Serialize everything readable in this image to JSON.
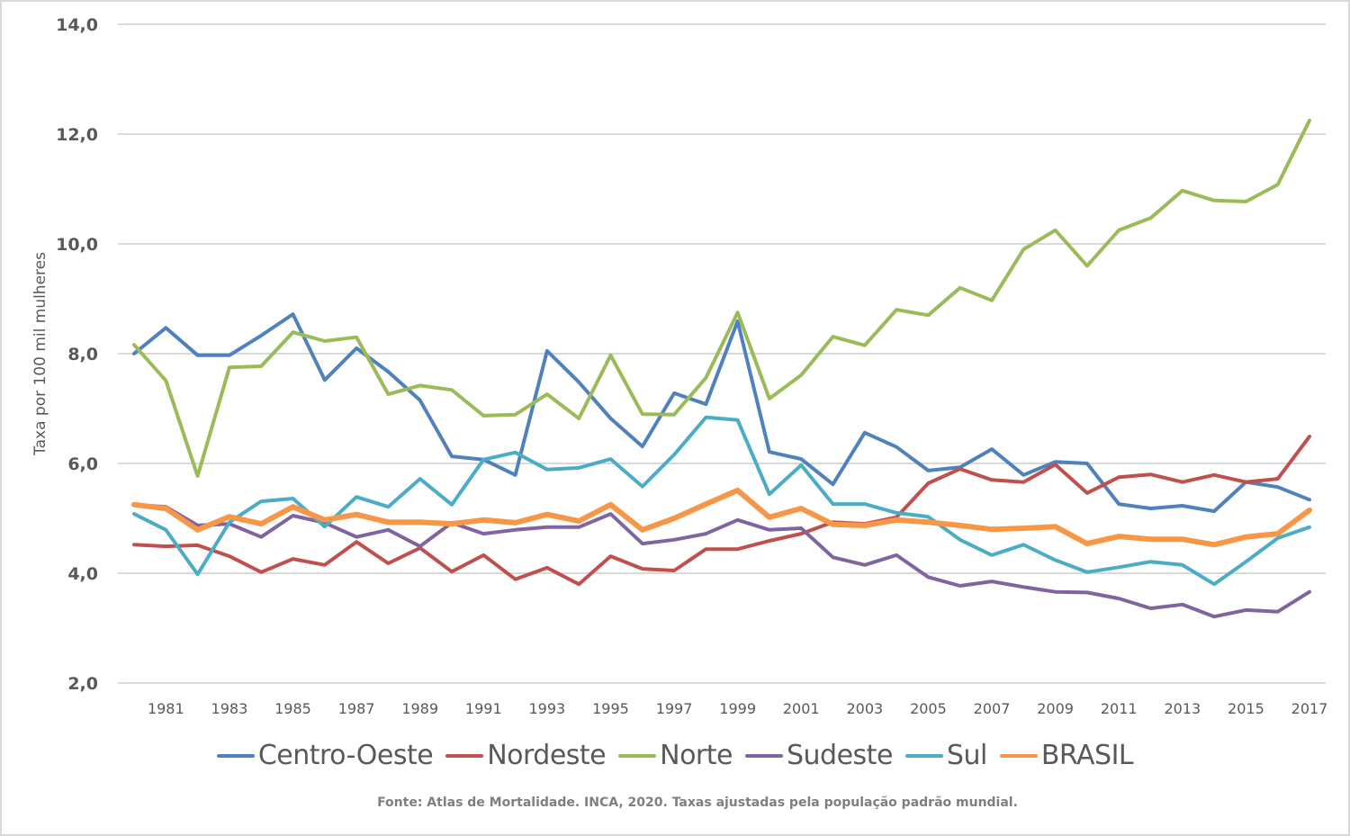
{
  "chart_data": {
    "type": "line",
    "title": "",
    "xlabel": "",
    "ylabel": "Taxa por 100 mil mulheres",
    "ylim": [
      2.0,
      14.0
    ],
    "y_ticks": [
      "2,0",
      "4,0",
      "6,0",
      "8,0",
      "10,0",
      "12,0",
      "14,0"
    ],
    "y_tick_values": [
      2,
      4,
      6,
      8,
      10,
      12,
      14
    ],
    "grid": true,
    "legend_position": "bottom",
    "x": [
      1980,
      1981,
      1982,
      1983,
      1984,
      1985,
      1986,
      1987,
      1988,
      1989,
      1990,
      1991,
      1992,
      1993,
      1994,
      1995,
      1996,
      1997,
      1998,
      1999,
      2000,
      2001,
      2002,
      2003,
      2004,
      2005,
      2006,
      2007,
      2008,
      2009,
      2010,
      2011,
      2012,
      2013,
      2014,
      2015,
      2016,
      2017
    ],
    "x_tick_labels": [
      "1981",
      "1983",
      "1985",
      "1987",
      "1989",
      "1991",
      "1993",
      "1995",
      "1997",
      "1999",
      "2001",
      "2003",
      "2005",
      "2007",
      "2009",
      "2011",
      "2013",
      "2015",
      "2017"
    ],
    "series": [
      {
        "name": "Centro-Oeste",
        "color": "#4f81bd",
        "values": [
          8.0,
          8.47,
          7.97,
          7.97,
          8.33,
          8.72,
          7.52,
          8.1,
          7.67,
          7.15,
          6.13,
          6.07,
          5.79,
          8.05,
          7.48,
          6.82,
          6.31,
          7.28,
          7.08,
          8.59,
          6.21,
          6.08,
          5.62,
          6.56,
          6.3,
          5.87,
          5.93,
          6.26,
          5.79,
          6.03,
          6.0,
          5.26,
          5.18,
          5.23,
          5.13,
          5.66,
          5.57,
          5.34
        ]
      },
      {
        "name": "Nordeste",
        "color": "#c0504d",
        "values": [
          4.52,
          4.49,
          4.51,
          4.31,
          4.02,
          4.26,
          4.15,
          4.57,
          4.18,
          4.46,
          4.03,
          4.33,
          3.89,
          4.1,
          3.8,
          4.31,
          4.08,
          4.05,
          4.44,
          4.44,
          4.59,
          4.72,
          4.93,
          4.9,
          5.02,
          5.64,
          5.9,
          5.7,
          5.66,
          5.98,
          5.46,
          5.75,
          5.8,
          5.66,
          5.79,
          5.66,
          5.72,
          6.49
        ]
      },
      {
        "name": "Norte",
        "color": "#9bbb59",
        "values": [
          8.16,
          7.51,
          5.77,
          7.75,
          7.77,
          8.39,
          8.23,
          8.3,
          7.26,
          7.42,
          7.34,
          6.87,
          6.89,
          7.26,
          6.82,
          7.97,
          6.9,
          6.89,
          7.56,
          8.75,
          7.18,
          7.61,
          8.31,
          8.15,
          8.8,
          8.7,
          9.2,
          8.97,
          9.9,
          10.25,
          9.6,
          10.25,
          10.47,
          10.97,
          10.79,
          10.77,
          11.08,
          12.25
        ]
      },
      {
        "name": "Sudeste",
        "color": "#8064a2",
        "values": [
          5.25,
          5.21,
          4.87,
          4.9,
          4.66,
          5.05,
          4.92,
          4.66,
          4.79,
          4.49,
          4.92,
          4.72,
          4.79,
          4.84,
          4.84,
          5.08,
          4.54,
          4.61,
          4.72,
          4.97,
          4.79,
          4.82,
          4.29,
          4.15,
          4.33,
          3.93,
          3.77,
          3.85,
          3.75,
          3.66,
          3.65,
          3.54,
          3.36,
          3.43,
          3.21,
          3.33,
          3.3,
          3.66
        ]
      },
      {
        "name": "Sul",
        "color": "#4bacc6",
        "values": [
          5.08,
          4.79,
          3.98,
          4.93,
          5.31,
          5.36,
          4.85,
          5.39,
          5.21,
          5.72,
          5.25,
          6.07,
          6.2,
          5.89,
          5.92,
          6.08,
          5.58,
          6.16,
          6.84,
          6.79,
          5.44,
          5.97,
          5.26,
          5.26,
          5.1,
          5.03,
          4.61,
          4.33,
          4.52,
          4.24,
          4.02,
          4.11,
          4.21,
          4.15,
          3.8,
          4.21,
          4.64,
          4.84
        ]
      },
      {
        "name": "BRASIL",
        "color": "#f79646",
        "values": [
          5.25,
          5.18,
          4.79,
          5.03,
          4.9,
          5.21,
          4.97,
          5.07,
          4.93,
          4.93,
          4.9,
          4.97,
          4.92,
          5.07,
          4.95,
          5.25,
          4.79,
          5.0,
          5.26,
          5.51,
          5.02,
          5.18,
          4.89,
          4.87,
          4.97,
          4.93,
          4.87,
          4.8,
          4.82,
          4.85,
          4.54,
          4.67,
          4.62,
          4.62,
          4.52,
          4.66,
          4.72,
          5.15
        ]
      }
    ]
  },
  "footnote": "Fonte: Atlas de Mortalidade.  INCA, 2020. Taxas ajustadas  pela população padrão mundial."
}
